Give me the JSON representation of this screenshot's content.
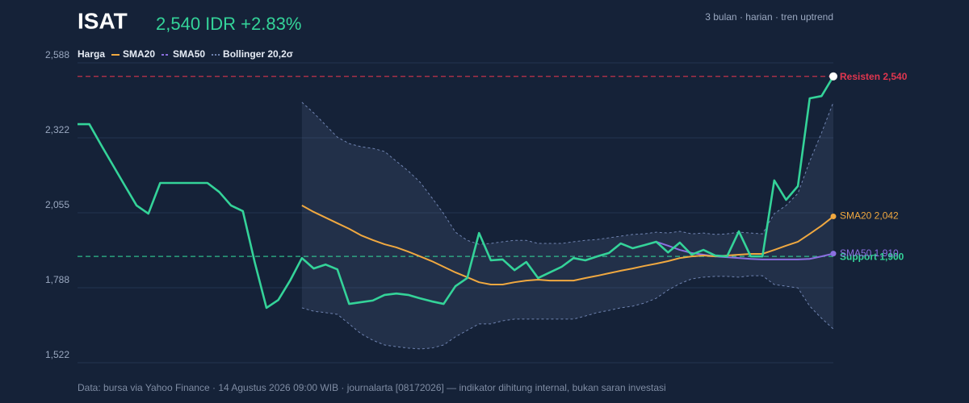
{
  "chart_data": {
    "type": "line",
    "title": "ISAT",
    "price_label": "2,540 IDR +2.83%",
    "subtitle": "3 bulan · harian · tren uptrend",
    "footer": "Data: bursa via Yahoo Finance · 14 Agustus 2026 09:00 WIB · journalarta [08172026] — indikator dihitung internal, bukan saran investasi",
    "ylim": [
      1522,
      2588
    ],
    "yticks": [
      {
        "value": 1522,
        "label": "1,522"
      },
      {
        "value": 1788.5,
        "label": "1,788"
      },
      {
        "value": 2055,
        "label": "2,055"
      },
      {
        "value": 2321.5,
        "label": "2,322"
      },
      {
        "value": 2588,
        "label": "2,588"
      }
    ],
    "grid": true,
    "series": [
      {
        "name": "Harga",
        "color": "#34d399",
        "end_label": null,
        "values": [
          2370,
          2370,
          2296,
          2224,
          2152,
          2081,
          2052,
          2161,
          2161,
          2161,
          2161,
          2161,
          2129,
          2081,
          2061,
          1880,
          1717,
          1745,
          1814,
          1894,
          1857,
          1871,
          1854,
          1731,
          1737,
          1743,
          1763,
          1768,
          1763,
          1751,
          1740,
          1731,
          1794,
          1823,
          1983,
          1886,
          1889,
          1851,
          1880,
          1823,
          1843,
          1863,
          1894,
          1886,
          1900,
          1912,
          1946,
          1929,
          1940,
          1952,
          1914,
          1949,
          1906,
          1923,
          1903,
          1900,
          1989,
          1900,
          1900,
          2170,
          2101,
          2150,
          2462,
          2470,
          2540
        ]
      },
      {
        "name": "SMA20",
        "color": "#f0a840",
        "end_label": "SMA20 2,042",
        "values": [
          null,
          null,
          null,
          null,
          null,
          null,
          null,
          null,
          null,
          null,
          null,
          null,
          null,
          null,
          null,
          null,
          null,
          null,
          null,
          2081,
          2058,
          2038,
          2018,
          1998,
          1975,
          1958,
          1943,
          1932,
          1917,
          1900,
          1883,
          1863,
          1843,
          1826,
          1808,
          1800,
          1800,
          1808,
          1814,
          1817,
          1814,
          1814,
          1814,
          1823,
          1831,
          1840,
          1849,
          1857,
          1866,
          1874,
          1883,
          1894,
          1900,
          1903,
          1900,
          1903,
          1906,
          1909,
          1909,
          1923,
          1938,
          1952,
          1980,
          2009,
          2042
        ]
      },
      {
        "name": "SMA50",
        "color": "#8b6fe0",
        "end_label": "SMA50 1,910",
        "values": [
          null,
          null,
          null,
          null,
          null,
          null,
          null,
          null,
          null,
          null,
          null,
          null,
          null,
          null,
          null,
          null,
          null,
          null,
          null,
          null,
          null,
          null,
          null,
          null,
          null,
          null,
          null,
          null,
          null,
          null,
          null,
          null,
          null,
          null,
          null,
          null,
          null,
          null,
          null,
          null,
          null,
          null,
          null,
          null,
          null,
          null,
          null,
          null,
          null,
          1952,
          1938,
          1923,
          1912,
          1906,
          1900,
          1897,
          1894,
          1891,
          1889,
          1889,
          1889,
          1889,
          1891,
          1900,
          1910
        ]
      }
    ],
    "bands": {
      "name": "Bollinger 20,2σ",
      "color": "#6f83b0",
      "upper": [
        null,
        null,
        null,
        null,
        null,
        null,
        null,
        null,
        null,
        null,
        null,
        null,
        null,
        null,
        null,
        null,
        null,
        null,
        null,
        2448,
        2410,
        2367,
        2324,
        2301,
        2290,
        2284,
        2273,
        2238,
        2204,
        2164,
        2109,
        2052,
        1986,
        1957,
        1943,
        1946,
        1952,
        1957,
        1957,
        1946,
        1946,
        1946,
        1952,
        1957,
        1960,
        1966,
        1972,
        1978,
        1980,
        1986,
        1983,
        1989,
        1980,
        1983,
        1978,
        1980,
        1986,
        1983,
        1980,
        2052,
        2081,
        2124,
        2238,
        2339,
        2448
      ],
      "lower": [
        null,
        null,
        null,
        null,
        null,
        null,
        null,
        null,
        null,
        null,
        null,
        null,
        null,
        null,
        null,
        null,
        null,
        null,
        null,
        1717,
        1705,
        1700,
        1694,
        1660,
        1625,
        1602,
        1585,
        1579,
        1574,
        1571,
        1574,
        1585,
        1614,
        1637,
        1660,
        1660,
        1671,
        1677,
        1677,
        1677,
        1677,
        1677,
        1677,
        1688,
        1700,
        1708,
        1717,
        1723,
        1734,
        1751,
        1780,
        1803,
        1820,
        1826,
        1829,
        1829,
        1826,
        1831,
        1831,
        1800,
        1794,
        1788,
        1723,
        1680,
        1642
      ]
    },
    "levels": [
      {
        "label": "Resisten 2,540",
        "value": 2540,
        "color": "#e0364f"
      },
      {
        "label": "Support 1,900",
        "value": 1900,
        "color": "#34d399"
      }
    ]
  }
}
